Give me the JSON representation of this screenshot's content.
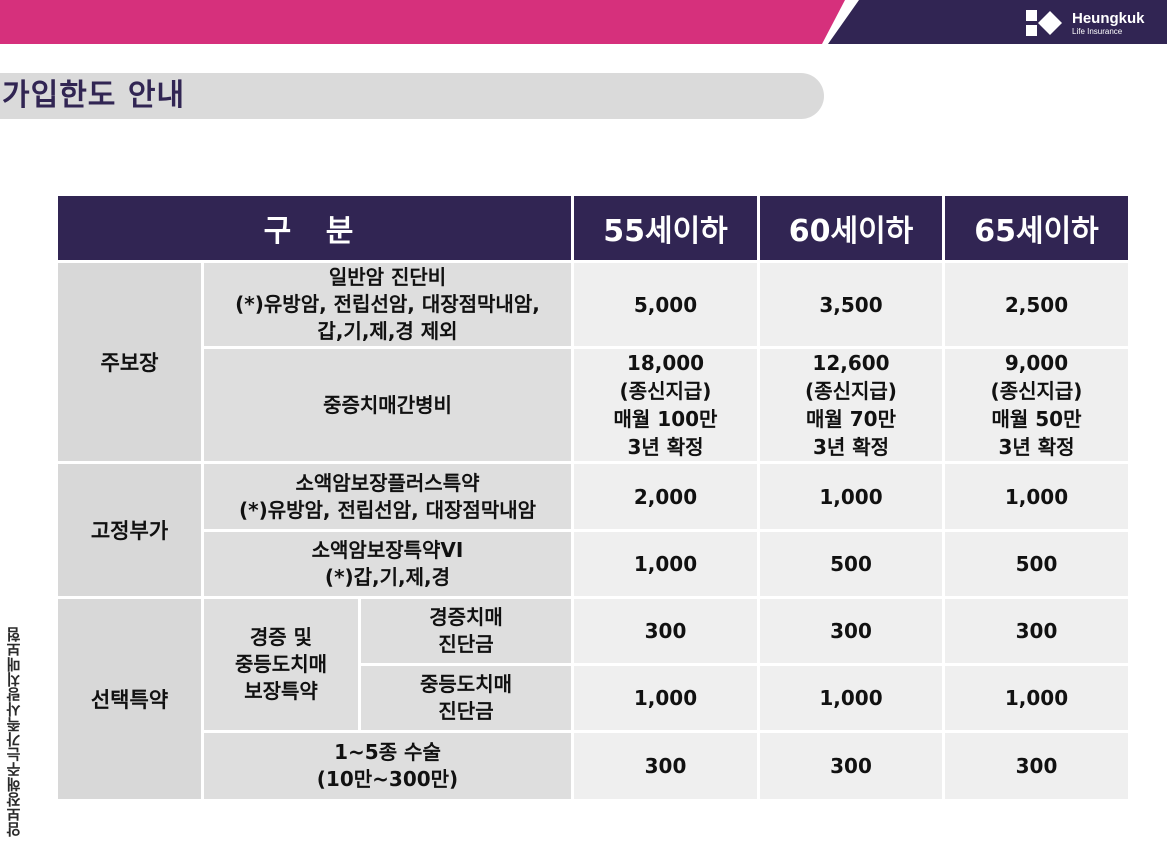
{
  "brand": {
    "name": "Heungkuk",
    "subtitle": "Life Insurance",
    "colors": {
      "magenta": "#d6307c",
      "navy": "#312553"
    }
  },
  "page_title": "가입한도 안내",
  "side_text": "암보장해주는가족사랑치매보험",
  "table": {
    "headers": [
      "구 분",
      "55세이하",
      "60세이하",
      "65세이하"
    ],
    "groups": {
      "main": {
        "label": "주보장",
        "rows": [
          {
            "item": [
              "일반암 진단비",
              "(*)유방암, 전립선암, 대장점막내암,",
              "갑,기,제,경 제외"
            ],
            "values": [
              "5,000",
              "3,500",
              "2,500"
            ]
          },
          {
            "item": [
              "중증치매간병비"
            ],
            "values": [
              [
                "18,000",
                "(종신지급)",
                "매월 100만",
                "3년 확정"
              ],
              [
                "12,600",
                "(종신지급)",
                "매월 70만",
                "3년 확정"
              ],
              [
                "9,000",
                "(종신지급)",
                "매월 50만",
                "3년 확정"
              ]
            ]
          }
        ]
      },
      "fixed": {
        "label": "고정부가",
        "rows": [
          {
            "item": [
              "소액암보장플러스특약",
              "(*)유방암, 전립선암, 대장점막내암"
            ],
            "values": [
              "2,000",
              "1,000",
              "1,000"
            ]
          },
          {
            "item": [
              "소액암보장특약VI",
              "(*)갑,기,제,경"
            ],
            "values": [
              "1,000",
              "500",
              "500"
            ]
          }
        ]
      },
      "optional": {
        "label": "선택특약",
        "sub_label": [
          "경증 및",
          "중등도치매",
          "보장특약"
        ],
        "rows": [
          {
            "item": [
              "경증치매",
              "진단금"
            ],
            "values": [
              "300",
              "300",
              "300"
            ]
          },
          {
            "item": [
              "중등도치매",
              "진단금"
            ],
            "values": [
              "1,000",
              "1,000",
              "1,000"
            ]
          },
          {
            "item": [
              "1~5종 수술",
              "(10만~300만)"
            ],
            "values": [
              "300",
              "300",
              "300"
            ]
          }
        ]
      }
    }
  }
}
